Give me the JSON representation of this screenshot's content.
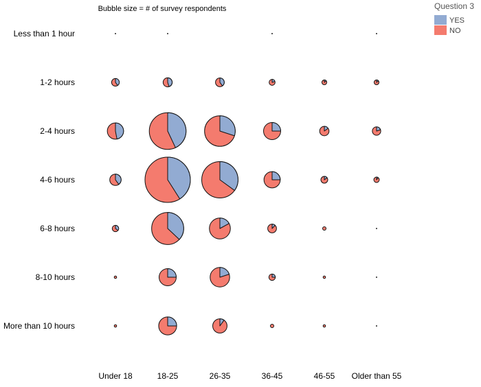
{
  "chart_data": {
    "type": "scatter",
    "subtype": "pie-bubble-grid",
    "annotation": "Bubble size = # of survey respondents",
    "x_categories": [
      "Under 18",
      "18-25",
      "26-35",
      "36-45",
      "46-55",
      "Older than 55"
    ],
    "y_categories": [
      "Less than 1 hour",
      "1-2 hours",
      "2-4 hours",
      "4-6 hours",
      "6-8 hours",
      "8-10 hours",
      "More than 10 hours"
    ],
    "legend": {
      "title": "Question 3",
      "position": "top-right",
      "items": [
        {
          "label": "YES",
          "color": "#92abd2"
        },
        {
          "label": "NO",
          "color": "#f47b6e"
        }
      ]
    },
    "grid": false,
    "size_measure": "# of survey respondents",
    "bubbles": [
      {
        "x": "Under 18",
        "y": "Less than 1 hour",
        "respondents": 0,
        "yes_share": 0
      },
      {
        "x": "18-25",
        "y": "Less than 1 hour",
        "respondents": 0,
        "yes_share": 0
      },
      {
        "x": "36-45",
        "y": "Less than 1 hour",
        "respondents": 0,
        "yes_share": 0
      },
      {
        "x": "Older than 55",
        "y": "Less than 1 hour",
        "respondents": 0,
        "yes_share": 0
      },
      {
        "x": "Under 18",
        "y": "1-2 hours",
        "respondents": 10,
        "yes_share": 0.4
      },
      {
        "x": "18-25",
        "y": "1-2 hours",
        "respondents": 14,
        "yes_share": 0.45
      },
      {
        "x": "26-35",
        "y": "1-2 hours",
        "respondents": 13,
        "yes_share": 0.4
      },
      {
        "x": "36-45",
        "y": "1-2 hours",
        "respondents": 6,
        "yes_share": 0.2
      },
      {
        "x": "46-55",
        "y": "1-2 hours",
        "respondents": 4,
        "yes_share": 0.15
      },
      {
        "x": "Older than 55",
        "y": "1-2 hours",
        "respondents": 4,
        "yes_share": 0.15
      },
      {
        "x": "Under 18",
        "y": "2-4 hours",
        "respondents": 45,
        "yes_share": 0.47
      },
      {
        "x": "18-25",
        "y": "2-4 hours",
        "respondents": 230,
        "yes_share": 0.43
      },
      {
        "x": "26-35",
        "y": "2-4 hours",
        "respondents": 160,
        "yes_share": 0.3
      },
      {
        "x": "36-45",
        "y": "2-4 hours",
        "respondents": 50,
        "yes_share": 0.25
      },
      {
        "x": "46-55",
        "y": "2-4 hours",
        "respondents": 15,
        "yes_share": 0.15
      },
      {
        "x": "Older than 55",
        "y": "2-4 hours",
        "respondents": 12,
        "yes_share": 0.2
      },
      {
        "x": "Under 18",
        "y": "4-6 hours",
        "respondents": 22,
        "yes_share": 0.4
      },
      {
        "x": "18-25",
        "y": "4-6 hours",
        "respondents": 350,
        "yes_share": 0.41
      },
      {
        "x": "26-35",
        "y": "4-6 hours",
        "respondents": 225,
        "yes_share": 0.35
      },
      {
        "x": "36-45",
        "y": "4-6 hours",
        "respondents": 45,
        "yes_share": 0.25
      },
      {
        "x": "46-55",
        "y": "4-6 hours",
        "respondents": 8,
        "yes_share": 0.15
      },
      {
        "x": "Older than 55",
        "y": "4-6 hours",
        "respondents": 5,
        "yes_share": 0.1
      },
      {
        "x": "Under 18",
        "y": "6-8 hours",
        "respondents": 7,
        "yes_share": 0.35
      },
      {
        "x": "18-25",
        "y": "6-8 hours",
        "respondents": 175,
        "yes_share": 0.37
      },
      {
        "x": "26-35",
        "y": "6-8 hours",
        "respondents": 75,
        "yes_share": 0.17
      },
      {
        "x": "36-45",
        "y": "6-8 hours",
        "respondents": 13,
        "yes_share": 0.12
      },
      {
        "x": "46-55",
        "y": "6-8 hours",
        "respondents": 2,
        "yes_share": 0
      },
      {
        "x": "Older than 55",
        "y": "6-8 hours",
        "respondents": 0,
        "yes_share": 0
      },
      {
        "x": "Under 18",
        "y": "8-10 hours",
        "respondents": 1,
        "yes_share": 0
      },
      {
        "x": "18-25",
        "y": "8-10 hours",
        "respondents": 50,
        "yes_share": 0.25
      },
      {
        "x": "26-35",
        "y": "8-10 hours",
        "respondents": 65,
        "yes_share": 0.2
      },
      {
        "x": "36-45",
        "y": "8-10 hours",
        "respondents": 7,
        "yes_share": 0.25
      },
      {
        "x": "46-55",
        "y": "8-10 hours",
        "respondents": 1,
        "yes_share": 0
      },
      {
        "x": "Older than 55",
        "y": "8-10 hours",
        "respondents": 0,
        "yes_share": 0
      },
      {
        "x": "Under 18",
        "y": "More than 10 hours",
        "respondents": 1,
        "yes_share": 0
      },
      {
        "x": "18-25",
        "y": "More than 10 hours",
        "respondents": 55,
        "yes_share": 0.25
      },
      {
        "x": "26-35",
        "y": "More than 10 hours",
        "respondents": 35,
        "yes_share": 0.1
      },
      {
        "x": "36-45",
        "y": "More than 10 hours",
        "respondents": 2,
        "yes_share": 0
      },
      {
        "x": "46-55",
        "y": "More than 10 hours",
        "respondents": 1,
        "yes_share": 0
      },
      {
        "x": "Older than 55",
        "y": "More than 10 hours",
        "respondents": 0,
        "yes_share": 0
      }
    ]
  }
}
